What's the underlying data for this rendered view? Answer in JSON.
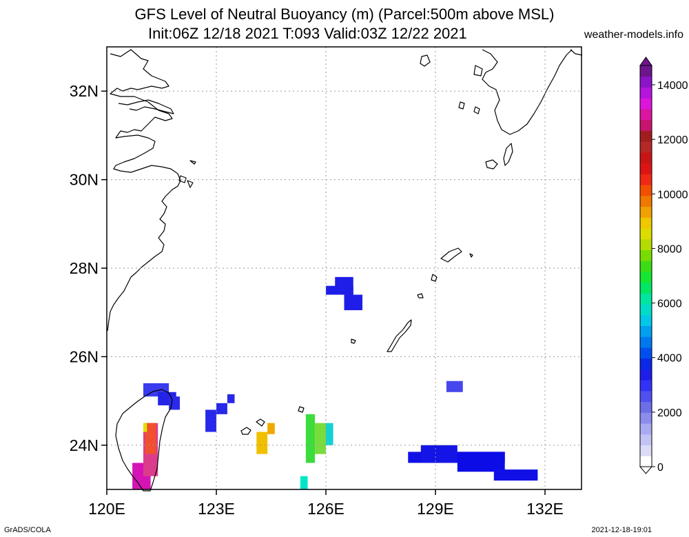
{
  "header": {
    "title_line1": "GFS Level of Neutral Buoyancy (m) (Parcel:500m above MSL)",
    "title_line2": "Init:06Z 12/18 2021 T:093 Valid:03Z 12/22 2021",
    "site": "weather-models.info"
  },
  "footer": {
    "left": "GrADS/COLA",
    "right": "2021-12-18-19:01"
  },
  "map": {
    "lon_range": [
      120,
      133
    ],
    "lat_range": [
      23,
      33
    ],
    "lon_ticks": [
      "120E",
      "123E",
      "126E",
      "129E",
      "132E"
    ],
    "lat_ticks": [
      "24N",
      "26N",
      "28N",
      "30N",
      "32N"
    ],
    "grid": true
  },
  "colorbar": {
    "labels": [
      "0",
      "2000",
      "4000",
      "6000",
      "8000",
      "10000",
      "12000",
      "14000"
    ],
    "colors": [
      "#ffffff",
      "#dcdcf8",
      "#c4c4f4",
      "#aaaaf0",
      "#8c8cec",
      "#6e6ee8",
      "#5050f0",
      "#3232f6",
      "#1e1ee8",
      "#0a28e6",
      "#0050f0",
      "#0078f0",
      "#00a0f0",
      "#00c8e6",
      "#00dcc8",
      "#00e6a0",
      "#00e664",
      "#14e632",
      "#3cdc14",
      "#78dc00",
      "#b4dc00",
      "#dcdc00",
      "#f0c800",
      "#f0a000",
      "#f07800",
      "#f05000",
      "#f02814",
      "#dc1414",
      "#c81414",
      "#b42828",
      "#a01e1e",
      "#c8146e",
      "#dc14a0",
      "#dc14dc",
      "#b414dc",
      "#8c14c8",
      "#6e148c"
    ]
  },
  "field_cells": [
    {
      "name": "taiwan-nw-blue",
      "lon0": 121.0,
      "lon1": 121.7,
      "lat0": 25.1,
      "lat1": 25.4,
      "color": "#3a3aee"
    },
    {
      "name": "taiwan-n-blue",
      "lon0": 121.4,
      "lon1": 121.9,
      "lat0": 24.9,
      "lat1": 25.2,
      "color": "#2424e8"
    },
    {
      "name": "taiwan-ne-blue",
      "lon0": 121.7,
      "lon1": 122.0,
      "lat0": 24.8,
      "lat1": 25.1,
      "color": "#2a2aea"
    },
    {
      "name": "taiwan-purple",
      "lon0": 120.7,
      "lon1": 121.2,
      "lat0": 23.0,
      "lat1": 23.6,
      "color": "#d414b4"
    },
    {
      "name": "taiwan-magenta",
      "lon0": 121.0,
      "lon1": 121.4,
      "lat0": 23.3,
      "lat1": 24.5,
      "color": "#dc3c8c"
    },
    {
      "name": "taiwan-red",
      "lon0": 121.05,
      "lon1": 121.35,
      "lat0": 23.8,
      "lat1": 24.5,
      "color": "#f05030"
    },
    {
      "name": "taiwan-yellow",
      "lon0": 121.0,
      "lon1": 121.1,
      "lat0": 24.3,
      "lat1": 24.5,
      "color": "#e0e000"
    },
    {
      "name": "e-taiwan-blue1",
      "lon0": 122.7,
      "lon1": 123.0,
      "lat0": 24.3,
      "lat1": 24.8,
      "color": "#2828ea"
    },
    {
      "name": "e-taiwan-blue2",
      "lon0": 123.0,
      "lon1": 123.3,
      "lat0": 24.7,
      "lat1": 24.95,
      "color": "#2828ea"
    },
    {
      "name": "e-taiwan-blue3",
      "lon0": 123.3,
      "lon1": 123.5,
      "lat0": 24.95,
      "lat1": 25.15,
      "color": "#2828ea"
    },
    {
      "name": "yaeyama-orange",
      "lon0": 124.1,
      "lon1": 124.4,
      "lat0": 23.8,
      "lat1": 24.3,
      "color": "#f0c000"
    },
    {
      "name": "yaeyama-orange2",
      "lon0": 124.4,
      "lon1": 124.6,
      "lat0": 24.25,
      "lat1": 24.5,
      "color": "#f0a800"
    },
    {
      "name": "miyako-green",
      "lon0": 125.45,
      "lon1": 125.7,
      "lat0": 23.6,
      "lat1": 24.7,
      "color": "#3cdc3c"
    },
    {
      "name": "miyako-green2",
      "lon0": 125.7,
      "lon1": 126.0,
      "lat0": 23.8,
      "lat1": 24.5,
      "color": "#78dc3c"
    },
    {
      "name": "miyako-cyan",
      "lon0": 126.0,
      "lon1": 126.2,
      "lat0": 24.0,
      "lat1": 24.5,
      "color": "#14d2d2"
    },
    {
      "name": "miyako-cyan2",
      "lon0": 125.3,
      "lon1": 125.5,
      "lat0": 23.0,
      "lat1": 23.3,
      "color": "#00e6c8"
    },
    {
      "name": "okinawa-nw-blue",
      "lon0": 126.0,
      "lon1": 126.5,
      "lat0": 27.4,
      "lat1": 27.6,
      "color": "#1e1ee8"
    },
    {
      "name": "okinawa-nw-blue2",
      "lon0": 126.25,
      "lon1": 126.75,
      "lat0": 27.4,
      "lat1": 27.8,
      "color": "#1e1ee8"
    },
    {
      "name": "okinawa-nw-blue3",
      "lon0": 126.5,
      "lon1": 127.0,
      "lat0": 27.05,
      "lat1": 27.4,
      "color": "#1e1ee8"
    },
    {
      "name": "okinawa-nw-blue4",
      "lon0": 126.5,
      "lon1": 126.75,
      "lat0": 27.2,
      "lat1": 27.6,
      "color": "#1e1ee8"
    },
    {
      "name": "east-blue-dot",
      "lon0": 129.3,
      "lon1": 129.75,
      "lat0": 25.2,
      "lat1": 25.45,
      "color": "#4646ec"
    },
    {
      "name": "east-blue1",
      "lon0": 128.25,
      "lon1": 130.9,
      "lat0": 23.6,
      "lat1": 23.85,
      "color": "#1010e6"
    },
    {
      "name": "east-blue2",
      "lon0": 128.6,
      "lon1": 129.6,
      "lat0": 23.6,
      "lat1": 24.0,
      "color": "#1414e6"
    },
    {
      "name": "east-blue3",
      "lon0": 129.6,
      "lon1": 130.9,
      "lat0": 23.4,
      "lat1": 23.85,
      "color": "#0c0ce6"
    },
    {
      "name": "east-blue4",
      "lon0": 130.6,
      "lon1": 131.8,
      "lat0": 23.2,
      "lat1": 23.45,
      "color": "#1010e6"
    }
  ]
}
